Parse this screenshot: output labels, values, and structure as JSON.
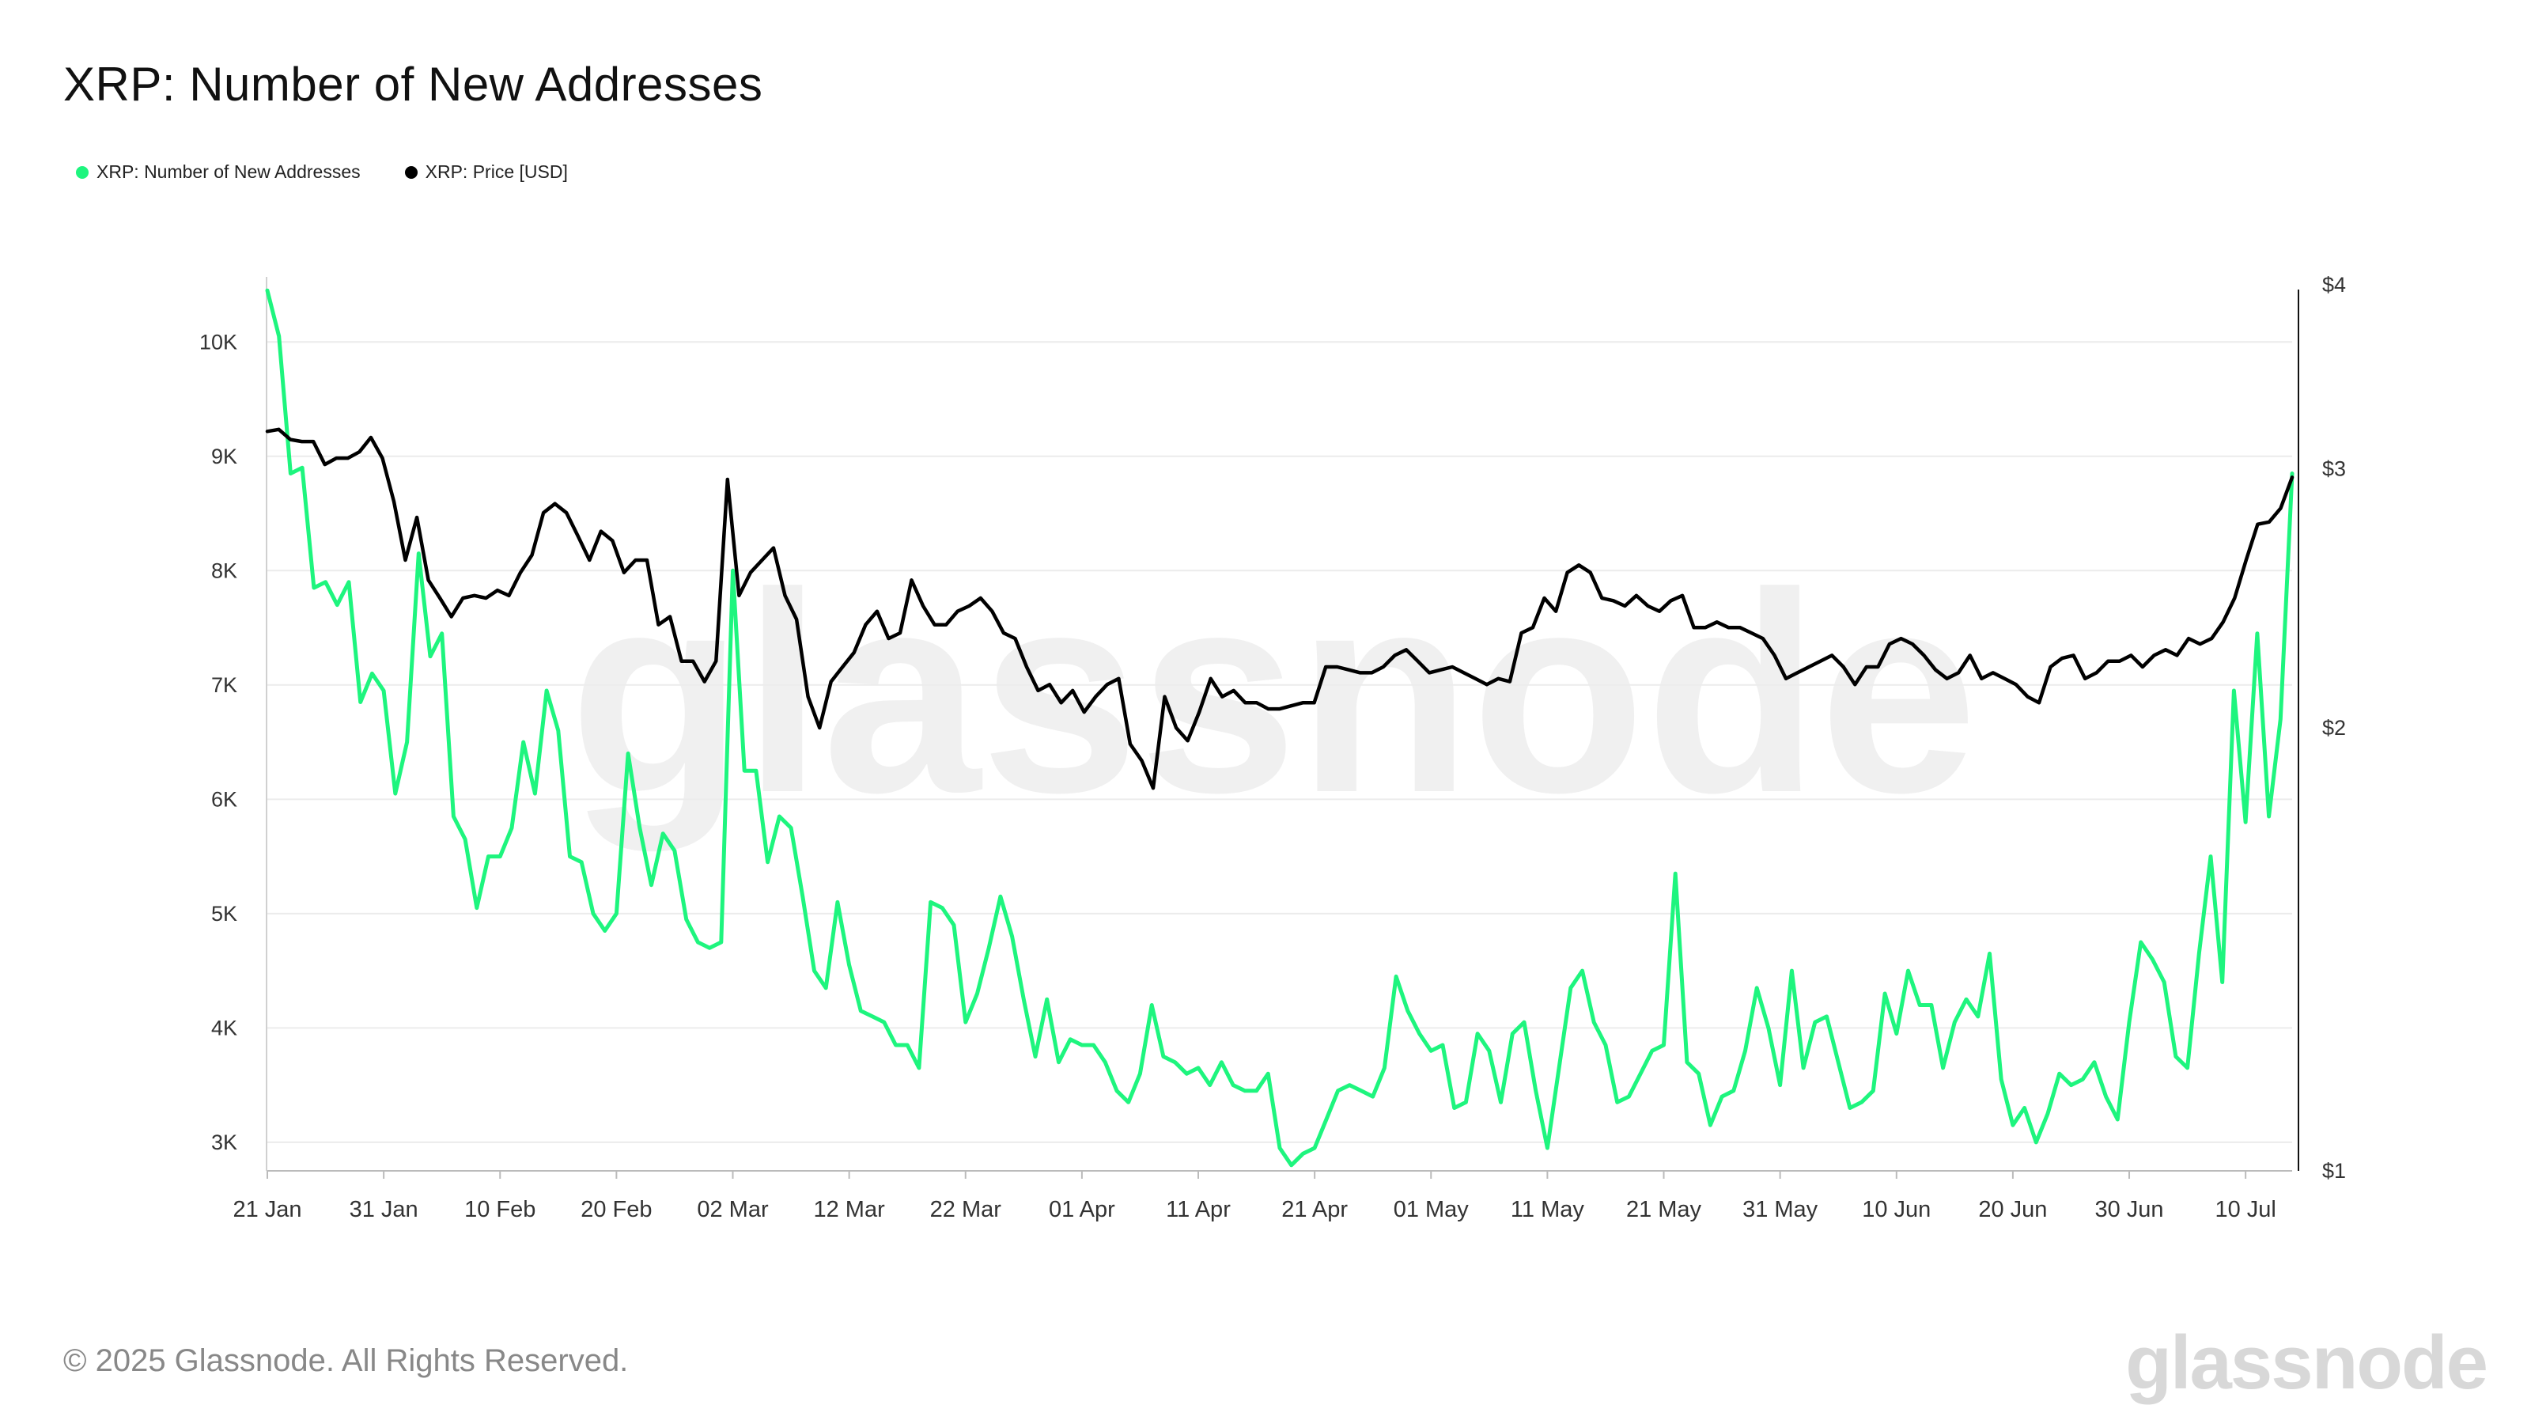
{
  "title": "XRP: Number of New Addresses",
  "legend": [
    {
      "label": "XRP: Number of New Addresses",
      "color": "#1ef57e"
    },
    {
      "label": "XRP: Price [USD]",
      "color": "#000000"
    }
  ],
  "footer": "© 2025 Glassnode. All Rights Reserved.",
  "brand": "glassnode",
  "watermark": "glassnode",
  "chart_data": {
    "type": "line",
    "x_start": "2025-01-21",
    "x_end": "2025-07-14",
    "x_tick_labels": [
      "21 Jan",
      "31 Jan",
      "10 Feb",
      "20 Feb",
      "02 Mar",
      "12 Mar",
      "22 Mar",
      "01 Apr",
      "11 Apr",
      "21 Apr",
      "01 May",
      "11 May",
      "21 May",
      "31 May",
      "10 Jun",
      "20 Jun",
      "30 Jun",
      "10 Jul"
    ],
    "y_left": {
      "ticks": [
        "3K",
        "4K",
        "5K",
        "6K",
        "7K",
        "8K",
        "9K",
        "10K"
      ],
      "range": [
        2750,
        10500
      ]
    },
    "y_right": {
      "ticks": [
        "$1",
        "$2",
        "$3",
        "$4"
      ],
      "scale": "log",
      "range": [
        1,
        4
      ]
    },
    "grid": true,
    "legend_position": "top-left",
    "series": [
      {
        "name": "XRP: Number of New Addresses",
        "color": "#1ef57e",
        "axis": "left",
        "values": [
          10450,
          10050,
          8850,
          8900,
          7850,
          7900,
          7700,
          7900,
          6850,
          7100,
          6950,
          6050,
          6500,
          8150,
          7250,
          7450,
          5850,
          5650,
          5050,
          5500,
          5500,
          5750,
          6500,
          6050,
          6950,
          6600,
          5500,
          5450,
          5000,
          4850,
          5000,
          6400,
          5750,
          5250,
          5700,
          5550,
          4950,
          4750,
          4700,
          4750,
          8000,
          6250,
          6250,
          5450,
          5850,
          5750,
          5150,
          4500,
          4350,
          5100,
          4550,
          4150,
          4100,
          4050,
          3850,
          3850,
          3650,
          5100,
          5050,
          4900,
          4050,
          4300,
          4700,
          5150,
          4800,
          4250,
          3750,
          4250,
          3700,
          3900,
          3850,
          3850,
          3700,
          3450,
          3350,
          3600,
          4200,
          3750,
          3700,
          3600,
          3650,
          3500,
          3700,
          3500,
          3450,
          3450,
          3600,
          2950,
          2800,
          2900,
          2950,
          3200,
          3450,
          3500,
          3450,
          3400,
          3650,
          4450,
          4150,
          3950,
          3800,
          3850,
          3300,
          3350,
          3950,
          3800,
          3350,
          3950,
          4050,
          3450,
          2950,
          3650,
          4350,
          4500,
          4050,
          3850,
          3350,
          3400,
          3600,
          3800,
          3850,
          5350,
          3700,
          3600,
          3150,
          3400,
          3450,
          3800,
          4350,
          4000,
          3500,
          4500,
          3650,
          4050,
          4100,
          3700,
          3300,
          3350,
          3450,
          4300,
          3950,
          4500,
          4200,
          4200,
          3650,
          4050,
          4250,
          4100,
          4650,
          3550,
          3150,
          3300,
          3000,
          3250,
          3600,
          3500,
          3550,
          3700,
          3400,
          3200,
          4050,
          4750,
          4600,
          4400,
          3750,
          3650,
          4650,
          5500,
          4400,
          6950,
          5800,
          7450,
          5850,
          6700,
          8850
        ]
      },
      {
        "name": "XRP: Price [USD]",
        "color": "#000000",
        "axis": "right",
        "values": [
          3.18,
          3.19,
          3.14,
          3.13,
          3.13,
          3.02,
          3.05,
          3.05,
          3.08,
          3.15,
          3.05,
          2.85,
          2.6,
          2.78,
          2.52,
          2.45,
          2.38,
          2.45,
          2.46,
          2.45,
          2.48,
          2.46,
          2.55,
          2.62,
          2.8,
          2.84,
          2.8,
          2.7,
          2.6,
          2.72,
          2.68,
          2.55,
          2.6,
          2.6,
          2.35,
          2.38,
          2.22,
          2.22,
          2.15,
          2.22,
          2.95,
          2.46,
          2.55,
          2.6,
          2.65,
          2.46,
          2.37,
          2.1,
          2.0,
          2.15,
          2.2,
          2.25,
          2.35,
          2.4,
          2.3,
          2.32,
          2.52,
          2.42,
          2.35,
          2.35,
          2.4,
          2.42,
          2.45,
          2.4,
          2.32,
          2.3,
          2.2,
          2.12,
          2.14,
          2.08,
          2.12,
          2.05,
          2.1,
          2.14,
          2.16,
          1.95,
          1.9,
          1.82,
          2.1,
          2.0,
          1.96,
          2.05,
          2.16,
          2.1,
          2.12,
          2.08,
          2.08,
          2.06,
          2.06,
          2.07,
          2.08,
          2.08,
          2.2,
          2.2,
          2.19,
          2.18,
          2.18,
          2.2,
          2.24,
          2.26,
          2.22,
          2.18,
          2.19,
          2.2,
          2.18,
          2.16,
          2.14,
          2.16,
          2.15,
          2.32,
          2.34,
          2.45,
          2.4,
          2.55,
          2.58,
          2.55,
          2.45,
          2.44,
          2.42,
          2.46,
          2.42,
          2.4,
          2.44,
          2.46,
          2.34,
          2.34,
          2.36,
          2.34,
          2.34,
          2.32,
          2.3,
          2.24,
          2.16,
          2.18,
          2.2,
          2.22,
          2.24,
          2.2,
          2.14,
          2.2,
          2.2,
          2.28,
          2.3,
          2.28,
          2.24,
          2.19,
          2.16,
          2.18,
          2.24,
          2.16,
          2.18,
          2.16,
          2.14,
          2.1,
          2.08,
          2.2,
          2.23,
          2.24,
          2.16,
          2.18,
          2.22,
          2.22,
          2.24,
          2.2,
          2.24,
          2.26,
          2.24,
          2.3,
          2.28,
          2.3,
          2.36,
          2.45,
          2.6,
          2.75,
          2.76,
          2.82,
          2.96
        ]
      }
    ]
  }
}
